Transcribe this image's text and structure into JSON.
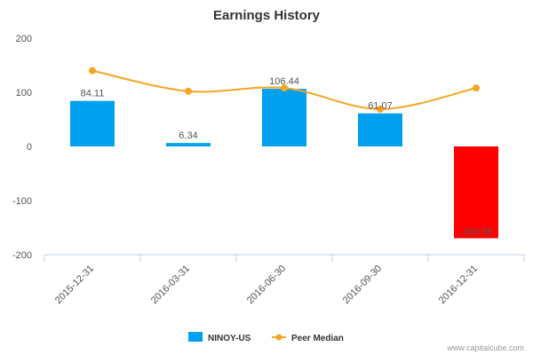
{
  "chart_data": {
    "type": "bar",
    "title": "Earnings History",
    "categories": [
      "2015-12-31",
      "2016-03-31",
      "2016-06-30",
      "2016-09-30",
      "2016-12-31"
    ],
    "series": [
      {
        "name": "NINOY-US",
        "kind": "bar",
        "values": [
          84.11,
          6.34,
          106.44,
          61.07,
          -169.56
        ],
        "labels": [
          "84.11",
          "6.34",
          "106.44",
          "61.07",
          "-169.56"
        ],
        "color": "#00a0f0",
        "negative_color": "#ff0000"
      },
      {
        "name": "Peer Median",
        "kind": "line",
        "values": [
          140,
          102,
          108,
          69,
          108
        ],
        "color": "#f5a623"
      }
    ],
    "ylim": [
      -200,
      200
    ],
    "yticks": [
      200,
      100,
      0,
      -100,
      -200
    ],
    "ytick_labels": [
      "200",
      "100",
      "0",
      "-100",
      "-200"
    ],
    "xlabel": "",
    "ylabel": "",
    "grid": false,
    "legend": "bottom-center"
  },
  "credit": "www.capitalcube.com"
}
